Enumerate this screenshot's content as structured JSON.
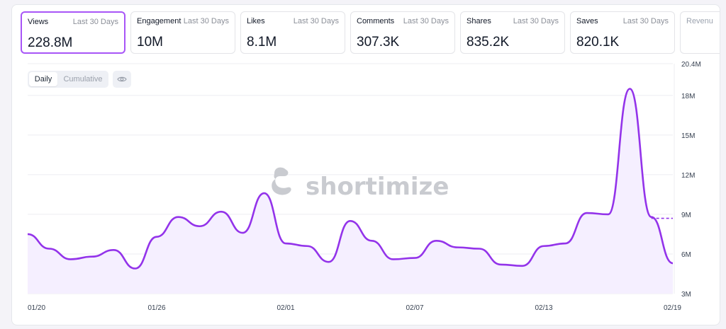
{
  "stats": [
    {
      "label": "Views",
      "period": "Last 30 Days",
      "value": "228.8M",
      "active": true
    },
    {
      "label": "Engagement",
      "period": "Last 30 Days",
      "value": "10M"
    },
    {
      "label": "Likes",
      "period": "Last 30 Days",
      "value": "8.1M"
    },
    {
      "label": "Comments",
      "period": "Last 30 Days",
      "value": "307.3K"
    },
    {
      "label": "Shares",
      "period": "Last 30 Days",
      "value": "835.2K"
    },
    {
      "label": "Saves",
      "period": "Last 30 Days",
      "value": "820.1K"
    },
    {
      "label": "Revenu"
    }
  ],
  "toggle": {
    "daily": "Daily",
    "cumulative": "Cumulative"
  },
  "watermark": "shortimize",
  "icons": {
    "visibility": "eye-icon",
    "watermark_logo": "shortimize-logo-icon"
  },
  "colors": {
    "accent": "#a855f7",
    "line": "#9333ea",
    "fill": "#f5efff"
  },
  "chart_data": {
    "type": "line",
    "x_ticks": [
      "01/20",
      "01/26",
      "02/01",
      "02/07",
      "02/13",
      "02/19"
    ],
    "y_ticks": [
      "3M",
      "6M",
      "9M",
      "12M",
      "15M",
      "18M",
      "20.4M"
    ],
    "ylim": [
      3000000,
      20400000
    ],
    "grid": true,
    "x": [
      "01/20",
      "01/21",
      "01/22",
      "01/23",
      "01/24",
      "01/25",
      "01/26",
      "01/27",
      "01/28",
      "01/29",
      "01/30",
      "01/31",
      "02/01",
      "02/02",
      "02/03",
      "02/04",
      "02/05",
      "02/06",
      "02/07",
      "02/08",
      "02/09",
      "02/10",
      "02/11",
      "02/12",
      "02/13",
      "02/14",
      "02/15",
      "02/16",
      "02/17",
      "02/18",
      "02/19"
    ],
    "series": [
      {
        "values": [
          7500000,
          6400000,
          5600000,
          5800000,
          6300000,
          4900000,
          7300000,
          8800000,
          8100000,
          9200000,
          7600000,
          10600000,
          6800000,
          6600000,
          5400000,
          8500000,
          7000000,
          5600000,
          5700000,
          7000000,
          6500000,
          6400000,
          5200000,
          5100000,
          6600000,
          6800000,
          9100000,
          9000000,
          18500000,
          8800000,
          5300000
        ],
        "projected_last": 8700000
      }
    ]
  }
}
